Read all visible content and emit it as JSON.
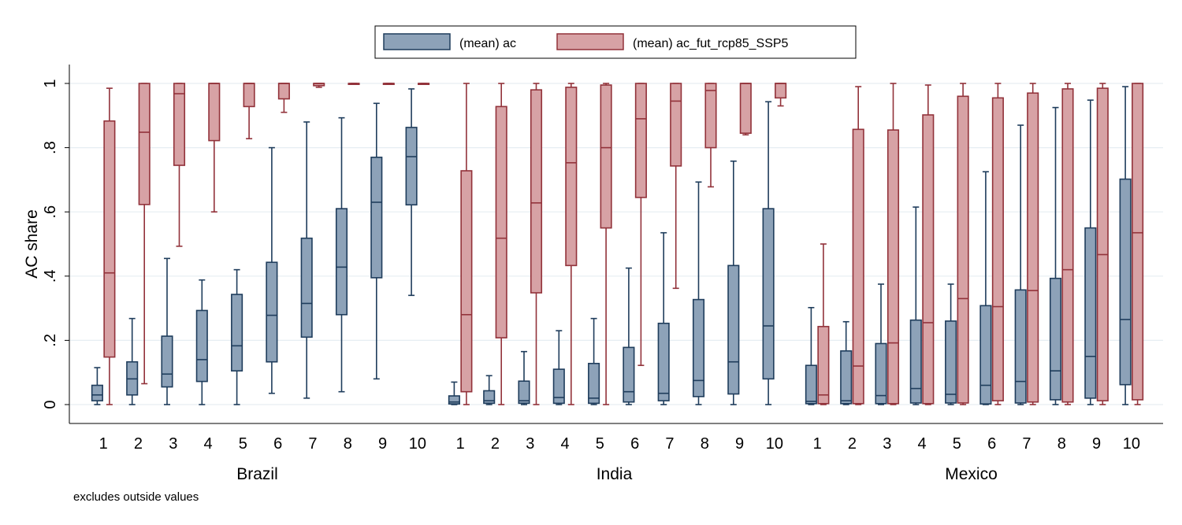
{
  "chart_data": {
    "type": "box",
    "ylabel": "AC share",
    "ylim": [
      0,
      1
    ],
    "yticks": [
      0,
      0.2,
      0.4,
      0.6,
      0.8,
      1
    ],
    "yticklabels": [
      "0",
      ".2",
      ".4",
      ".6",
      ".8",
      "1"
    ],
    "grid": true,
    "legend_position": "top-center",
    "note": "excludes outside values",
    "categories": [
      "1",
      "2",
      "3",
      "4",
      "5",
      "6",
      "7",
      "8",
      "9",
      "10"
    ],
    "series": [
      {
        "name": "(mean) ac",
        "color": "#8da2b8",
        "stroke": "#1f3d5c"
      },
      {
        "name": "(mean) ac_fut_rcp85_SSP5",
        "color": "#d7a2a5",
        "stroke": "#92323a"
      }
    ],
    "groups": [
      {
        "name": "Brazil",
        "boxes": {
          "(mean) ac": [
            [
              0.0,
              0.012,
              0.03,
              0.06,
              0.115
            ],
            [
              0.0,
              0.03,
              0.08,
              0.133,
              0.268
            ],
            [
              0.0,
              0.055,
              0.095,
              0.213,
              0.455
            ],
            [
              0.0,
              0.072,
              0.14,
              0.293,
              0.388
            ],
            [
              0.0,
              0.105,
              0.183,
              0.343,
              0.42
            ],
            [
              0.035,
              0.133,
              0.278,
              0.443,
              0.8
            ],
            [
              0.02,
              0.21,
              0.315,
              0.518,
              0.88
            ],
            [
              0.04,
              0.28,
              0.428,
              0.61,
              0.893
            ],
            [
              0.08,
              0.395,
              0.63,
              0.77,
              0.938
            ],
            [
              0.34,
              0.622,
              0.772,
              0.863,
              0.983
            ]
          ],
          "(mean) ac_fut_rcp85_SSP5": [
            [
              0.0,
              0.148,
              0.41,
              0.883,
              0.985
            ],
            [
              0.065,
              0.623,
              0.848,
              1.0,
              1.0
            ],
            [
              0.493,
              0.745,
              0.968,
              1.0,
              1.0
            ],
            [
              0.6,
              0.822,
              1.0,
              1.0,
              1.0
            ],
            [
              0.828,
              0.928,
              1.0,
              1.0,
              1.0
            ],
            [
              0.91,
              0.952,
              1.0,
              1.0,
              1.0
            ],
            [
              0.988,
              0.993,
              1.0,
              1.0,
              1.0
            ],
            [
              1.0,
              1.0,
              1.0,
              1.0,
              1.0
            ],
            [
              1.0,
              1.0,
              1.0,
              1.0,
              1.0
            ],
            [
              1.0,
              1.0,
              1.0,
              1.0,
              1.0
            ]
          ]
        }
      },
      {
        "name": "India",
        "boxes": {
          "(mean) ac": [
            [
              0.0,
              0.002,
              0.008,
              0.027,
              0.07
            ],
            [
              0.0,
              0.004,
              0.012,
              0.043,
              0.09
            ],
            [
              0.0,
              0.004,
              0.012,
              0.073,
              0.165
            ],
            [
              0.0,
              0.004,
              0.022,
              0.11,
              0.23
            ],
            [
              0.0,
              0.004,
              0.02,
              0.128,
              0.268
            ],
            [
              0.0,
              0.008,
              0.04,
              0.178,
              0.425
            ],
            [
              0.0,
              0.012,
              0.035,
              0.253,
              0.535
            ],
            [
              0.0,
              0.025,
              0.075,
              0.327,
              0.693
            ],
            [
              0.0,
              0.033,
              0.133,
              0.433,
              0.758
            ],
            [
              0.0,
              0.08,
              0.245,
              0.61,
              0.943
            ]
          ],
          "(mean) ac_fut_rcp85_SSP5": [
            [
              0.0,
              0.04,
              0.28,
              0.728,
              1.0
            ],
            [
              0.0,
              0.208,
              0.518,
              0.928,
              1.0
            ],
            [
              0.0,
              0.348,
              0.628,
              0.98,
              1.0
            ],
            [
              0.0,
              0.433,
              0.753,
              0.988,
              1.0
            ],
            [
              0.0,
              0.55,
              0.8,
              0.995,
              1.0
            ],
            [
              0.122,
              0.645,
              0.89,
              1.0,
              1.0
            ],
            [
              0.362,
              0.743,
              0.945,
              1.0,
              1.0
            ],
            [
              0.678,
              0.8,
              0.978,
              1.0,
              1.0
            ],
            [
              0.84,
              0.845,
              1.0,
              1.0,
              1.0
            ],
            [
              0.93,
              0.955,
              1.0,
              1.0,
              1.0
            ]
          ]
        }
      },
      {
        "name": "Mexico",
        "boxes": {
          "(mean) ac": [
            [
              0.0,
              0.003,
              0.01,
              0.122,
              0.302
            ],
            [
              0.0,
              0.003,
              0.012,
              0.167,
              0.258
            ],
            [
              0.0,
              0.003,
              0.028,
              0.19,
              0.375
            ],
            [
              0.0,
              0.005,
              0.05,
              0.263,
              0.615
            ],
            [
              0.0,
              0.005,
              0.032,
              0.26,
              0.375
            ],
            [
              0.0,
              0.002,
              0.06,
              0.308,
              0.725
            ],
            [
              0.0,
              0.005,
              0.072,
              0.357,
              0.87
            ],
            [
              0.0,
              0.015,
              0.105,
              0.393,
              0.925
            ],
            [
              0.0,
              0.02,
              0.15,
              0.55,
              0.948
            ],
            [
              0.0,
              0.062,
              0.265,
              0.702,
              0.99
            ]
          ],
          "(mean) ac_fut_rcp85_SSP5": [
            [
              0.0,
              0.003,
              0.03,
              0.243,
              0.5
            ],
            [
              0.0,
              0.003,
              0.12,
              0.857,
              0.99
            ],
            [
              0.0,
              0.003,
              0.192,
              0.855,
              1.0
            ],
            [
              0.0,
              0.003,
              0.255,
              0.902,
              0.995
            ],
            [
              0.0,
              0.005,
              0.33,
              0.96,
              1.0
            ],
            [
              0.0,
              0.012,
              0.305,
              0.955,
              1.0
            ],
            [
              0.0,
              0.008,
              0.355,
              0.97,
              1.0
            ],
            [
              0.0,
              0.008,
              0.42,
              0.983,
              1.0
            ],
            [
              0.0,
              0.012,
              0.467,
              0.985,
              1.0
            ],
            [
              0.0,
              0.015,
              0.535,
              1.0,
              1.0
            ]
          ]
        }
      }
    ]
  }
}
